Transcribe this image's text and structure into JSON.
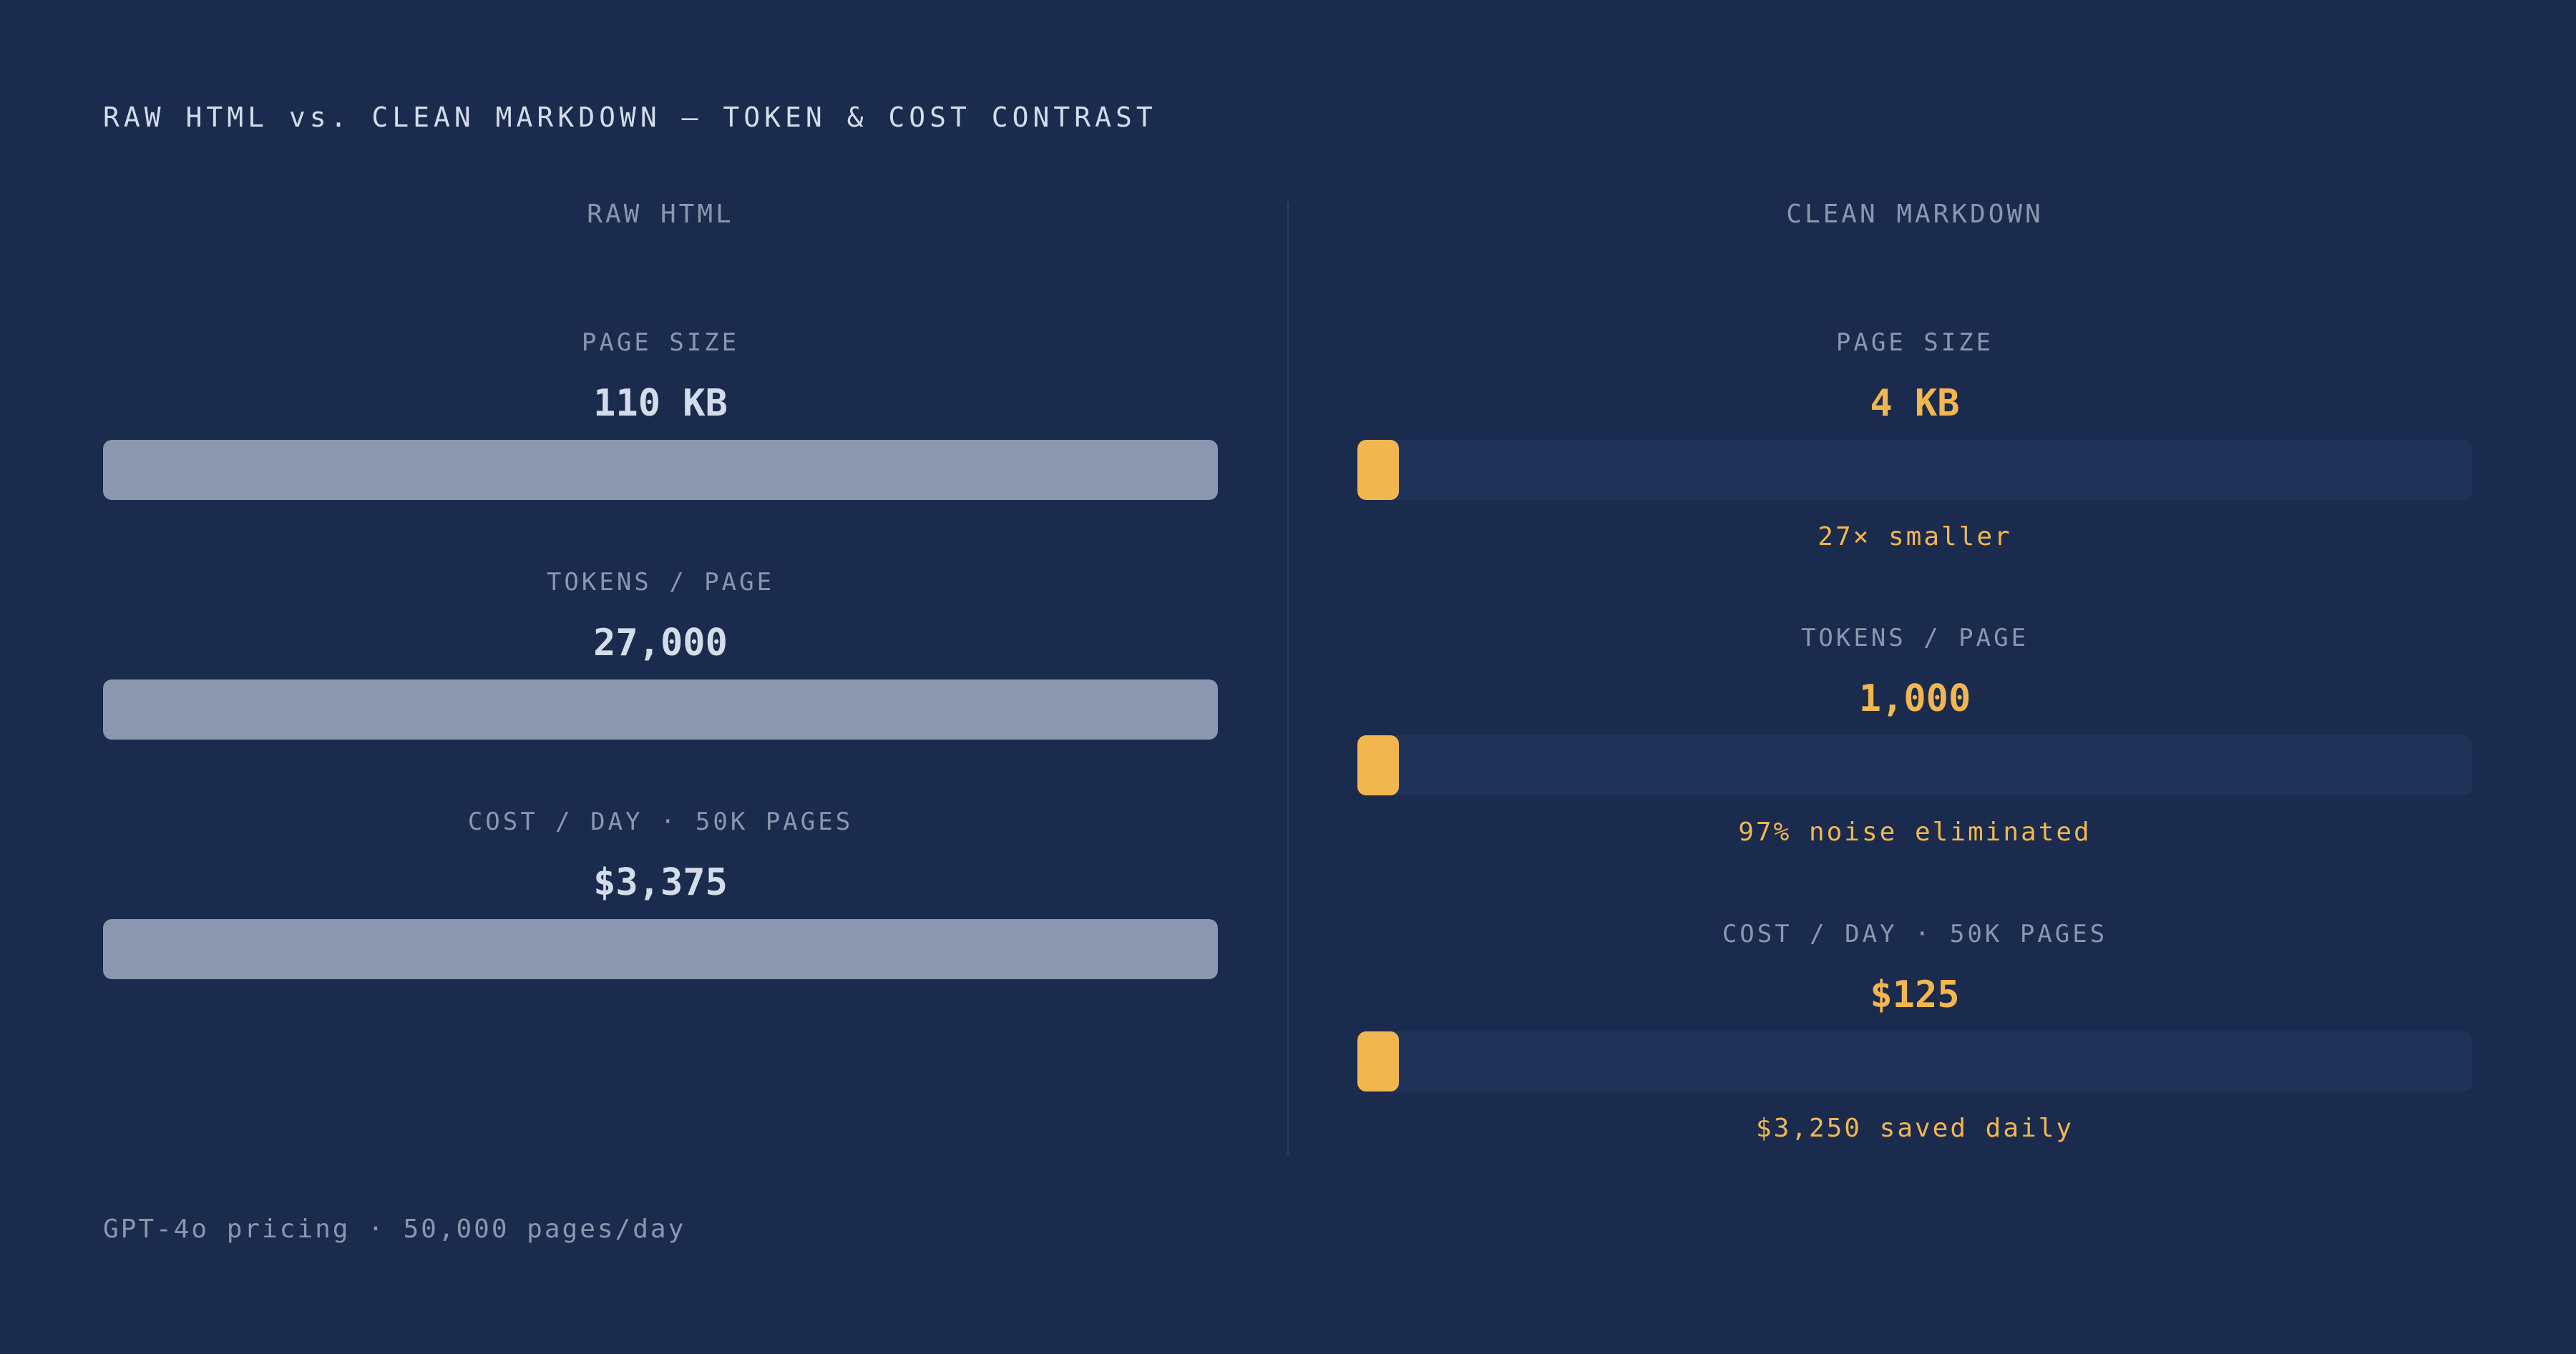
{
  "chart_data": {
    "type": "bar",
    "title": "RAW HTML vs. CLEAN MARKDOWN — TOKEN & COST CONTRAST",
    "footnote": "GPT-4o pricing · 50,000 pages/day",
    "panels": [
      {
        "heading": "RAW HTML",
        "metrics": [
          {
            "label": "PAGE SIZE",
            "value_text": "110 KB",
            "value": 110,
            "note": ""
          },
          {
            "label": "TOKENS / PAGE",
            "value_text": "27,000",
            "value": 27000,
            "note": ""
          },
          {
            "label": "COST / DAY · 50K PAGES",
            "value_text": "$3,375",
            "value": 3375,
            "note": ""
          }
        ]
      },
      {
        "heading": "CLEAN MARKDOWN",
        "metrics": [
          {
            "label": "PAGE SIZE",
            "value_text": "4 KB",
            "value": 4,
            "note": "27× smaller"
          },
          {
            "label": "TOKENS / PAGE",
            "value_text": "1,000",
            "value": 1000,
            "note": "97% noise eliminated"
          },
          {
            "label": "COST / DAY · 50K PAGES",
            "value_text": "$125",
            "value": 125,
            "note": "$3,250 saved daily"
          }
        ]
      }
    ],
    "colors": {
      "background": "#1a2b4d",
      "raw_bar": "#8a97ae",
      "clean_bar": "#f2b650",
      "track": "#1f3359"
    }
  }
}
